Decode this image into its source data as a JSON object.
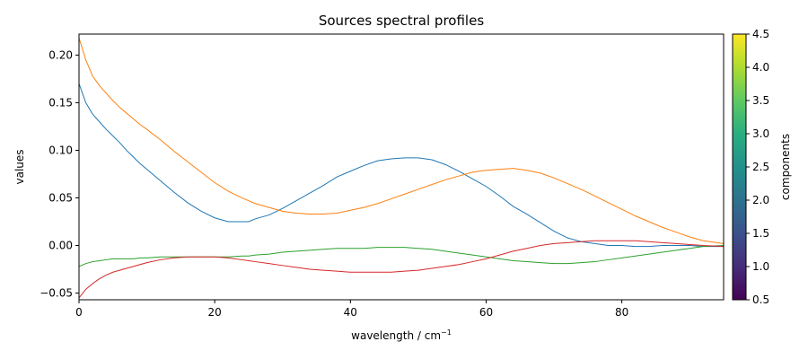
{
  "chart_data": {
    "type": "line",
    "title": "Sources spectral profiles",
    "xlabel_base": "wavelength / cm",
    "xlabel_sup": "−1",
    "ylabel": "values",
    "xlim": [
      0,
      95
    ],
    "ylim": [
      -0.057,
      0.222
    ],
    "xticks": [
      0,
      20,
      40,
      60,
      80
    ],
    "yticks": [
      -0.05,
      0.0,
      0.05,
      0.1,
      0.15,
      0.2
    ],
    "ytick_labels": [
      "−0.05",
      "0.00",
      "0.05",
      "0.10",
      "0.15",
      "0.20"
    ],
    "grid": false,
    "x": [
      0,
      1,
      2,
      3,
      4,
      5,
      6,
      7,
      8,
      9,
      10,
      12,
      14,
      16,
      18,
      20,
      22,
      24,
      25,
      26,
      28,
      30,
      32,
      34,
      36,
      38,
      40,
      42,
      44,
      46,
      48,
      50,
      52,
      54,
      56,
      58,
      60,
      62,
      64,
      66,
      68,
      70,
      72,
      74,
      76,
      78,
      80,
      82,
      84,
      86,
      88,
      90,
      92,
      95
    ],
    "series": [
      {
        "color": "#1f77b4",
        "values": [
          0.17,
          0.15,
          0.138,
          0.13,
          0.122,
          0.115,
          0.108,
          0.1,
          0.093,
          0.086,
          0.08,
          0.068,
          0.056,
          0.045,
          0.036,
          0.029,
          0.025,
          0.025,
          0.025,
          0.028,
          0.032,
          0.039,
          0.047,
          0.055,
          0.063,
          0.072,
          0.078,
          0.084,
          0.089,
          0.091,
          0.092,
          0.092,
          0.09,
          0.085,
          0.078,
          0.07,
          0.062,
          0.052,
          0.041,
          0.033,
          0.024,
          0.015,
          0.008,
          0.004,
          0.002,
          0.0,
          0.0,
          -0.001,
          -0.001,
          0.0,
          0.0,
          0.0,
          -0.001,
          -0.001
        ]
      },
      {
        "color": "#ff7f0e",
        "values": [
          0.218,
          0.195,
          0.178,
          0.168,
          0.16,
          0.152,
          0.145,
          0.139,
          0.133,
          0.127,
          0.122,
          0.111,
          0.099,
          0.088,
          0.077,
          0.066,
          0.057,
          0.05,
          0.047,
          0.044,
          0.04,
          0.036,
          0.034,
          0.033,
          0.033,
          0.034,
          0.037,
          0.04,
          0.044,
          0.049,
          0.054,
          0.059,
          0.064,
          0.069,
          0.073,
          0.077,
          0.079,
          0.08,
          0.081,
          0.079,
          0.076,
          0.071,
          0.065,
          0.059,
          0.052,
          0.045,
          0.038,
          0.031,
          0.025,
          0.019,
          0.014,
          0.009,
          0.005,
          0.002
        ]
      },
      {
        "color": "#2ca02c",
        "values": [
          -0.022,
          -0.019,
          -0.017,
          -0.016,
          -0.015,
          -0.014,
          -0.014,
          -0.014,
          -0.014,
          -0.013,
          -0.013,
          -0.012,
          -0.012,
          -0.012,
          -0.012,
          -0.012,
          -0.012,
          -0.011,
          -0.011,
          -0.01,
          -0.009,
          -0.007,
          -0.006,
          -0.005,
          -0.004,
          -0.003,
          -0.003,
          -0.003,
          -0.002,
          -0.002,
          -0.002,
          -0.003,
          -0.004,
          -0.006,
          -0.008,
          -0.01,
          -0.012,
          -0.014,
          -0.016,
          -0.017,
          -0.018,
          -0.019,
          -0.019,
          -0.018,
          -0.017,
          -0.015,
          -0.013,
          -0.011,
          -0.009,
          -0.007,
          -0.005,
          -0.003,
          -0.001,
          0.0
        ]
      },
      {
        "color": "#d62728",
        "values": [
          -0.055,
          -0.046,
          -0.04,
          -0.035,
          -0.031,
          -0.028,
          -0.026,
          -0.024,
          -0.022,
          -0.02,
          -0.018,
          -0.015,
          -0.013,
          -0.012,
          -0.012,
          -0.012,
          -0.013,
          -0.015,
          -0.016,
          -0.017,
          -0.019,
          -0.021,
          -0.023,
          -0.025,
          -0.026,
          -0.027,
          -0.028,
          -0.028,
          -0.028,
          -0.028,
          -0.027,
          -0.026,
          -0.024,
          -0.022,
          -0.02,
          -0.017,
          -0.014,
          -0.01,
          -0.006,
          -0.003,
          0.0,
          0.002,
          0.003,
          0.004,
          0.005,
          0.005,
          0.005,
          0.005,
          0.004,
          0.003,
          0.002,
          0.001,
          0.0,
          -0.001
        ]
      }
    ],
    "colorbar": {
      "label": "components",
      "min": 0.5,
      "max": 4.5,
      "ticks": [
        0.5,
        1.0,
        1.5,
        2.0,
        2.5,
        3.0,
        3.5,
        4.0,
        4.5
      ],
      "tick_labels": [
        "0.5",
        "1.0",
        "1.5",
        "2.0",
        "2.5",
        "3.0",
        "3.5",
        "4.0",
        "4.5"
      ],
      "colormap": "viridis"
    }
  }
}
